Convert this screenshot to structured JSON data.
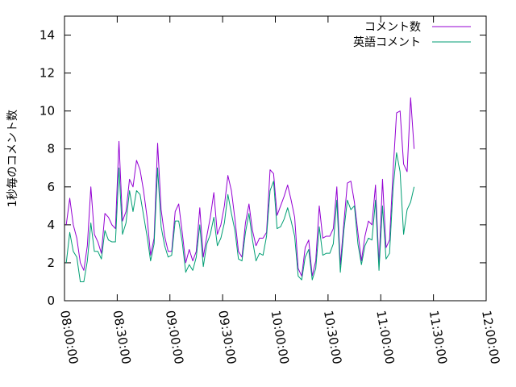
{
  "chart_data": {
    "type": "line",
    "title": "",
    "xlabel": "",
    "ylabel": "1秒毎のコメント数",
    "ylim": [
      0,
      15
    ],
    "yticks": [
      "0",
      "2",
      "4",
      "6",
      "8",
      "10",
      "12",
      "14"
    ],
    "xticks": [
      "08:00:00",
      "08:30:00",
      "09:00:00",
      "09:30:00",
      "10:00:00",
      "10:30:00",
      "11:00:00",
      "11:30:00",
      "12:00:00"
    ],
    "xlim_minutes": [
      0,
      240
    ],
    "x_step_minutes": 2,
    "x_start_minutes": 1,
    "legend_position": "top-right",
    "grid": false,
    "series": [
      {
        "name": "コメント数",
        "color": "#9400d3",
        "values": [
          4.0,
          5.4,
          4.0,
          3.3,
          2.0,
          1.6,
          2.9,
          6.0,
          3.5,
          3.1,
          2.5,
          4.6,
          4.4,
          4.0,
          3.8,
          8.4,
          4.2,
          4.7,
          6.4,
          6.0,
          7.4,
          6.9,
          5.8,
          4.4,
          2.4,
          3.3,
          8.3,
          4.8,
          3.4,
          2.6,
          2.6,
          4.7,
          5.1,
          3.6,
          2.0,
          2.7,
          2.1,
          2.6,
          4.9,
          2.3,
          3.4,
          4.4,
          5.7,
          3.5,
          4.0,
          5.0,
          6.6,
          5.8,
          4.3,
          2.6,
          2.3,
          4.1,
          5.1,
          3.7,
          2.9,
          3.3,
          3.3,
          3.6,
          6.9,
          6.7,
          4.5,
          5.0,
          5.5,
          6.1,
          5.3,
          4.4,
          1.7,
          1.3,
          2.8,
          3.2,
          1.3,
          2.1,
          5.0,
          3.3,
          3.4,
          3.4,
          3.8,
          6.0,
          1.9,
          4.1,
          6.2,
          6.3,
          5.2,
          3.6,
          2.1,
          3.4,
          4.2,
          4.0,
          6.1,
          1.9,
          6.4,
          2.8,
          3.2,
          6.8,
          9.9,
          10.0,
          7.2,
          6.8,
          10.7,
          8.0
        ]
      },
      {
        "name": "英語コメント",
        "color": "#009e73",
        "values": [
          2.0,
          3.6,
          2.6,
          2.3,
          1.0,
          1.0,
          2.1,
          4.1,
          2.6,
          2.6,
          2.2,
          3.7,
          3.2,
          3.1,
          3.1,
          7.0,
          3.5,
          4.1,
          5.8,
          4.7,
          5.8,
          5.6,
          4.5,
          3.4,
          2.1,
          3.0,
          7.0,
          3.9,
          2.9,
          2.3,
          2.4,
          4.2,
          4.2,
          3.1,
          1.5,
          1.9,
          1.6,
          2.3,
          4.0,
          1.8,
          3.0,
          3.5,
          4.4,
          2.9,
          3.3,
          4.1,
          5.6,
          4.6,
          3.7,
          2.2,
          2.1,
          3.6,
          4.6,
          3.2,
          2.1,
          2.5,
          2.4,
          3.4,
          5.8,
          6.3,
          3.8,
          3.9,
          4.3,
          4.9,
          4.2,
          3.4,
          1.3,
          1.1,
          2.3,
          2.7,
          1.1,
          1.7,
          3.9,
          2.4,
          2.5,
          2.5,
          3.0,
          5.3,
          1.5,
          3.7,
          5.3,
          4.8,
          5.0,
          3.0,
          1.9,
          2.9,
          3.3,
          3.2,
          5.3,
          1.6,
          5.0,
          2.2,
          2.5,
          5.9,
          7.8,
          6.8,
          3.5,
          4.8,
          5.2,
          6.0
        ]
      }
    ]
  }
}
